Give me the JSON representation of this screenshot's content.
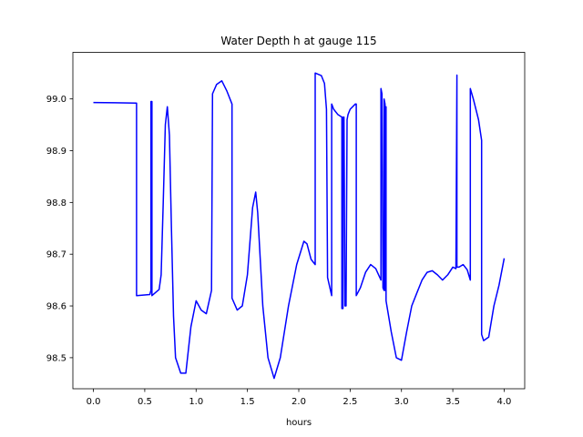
{
  "chart_data": {
    "type": "line",
    "title": "Water Depth h at gauge 115",
    "xlabel": "hours",
    "ylabel": "",
    "xlim": [
      -0.2,
      4.2
    ],
    "ylim": [
      98.44,
      99.09
    ],
    "xticks": [
      0.0,
      0.5,
      1.0,
      1.5,
      2.0,
      2.5,
      3.0,
      3.5,
      4.0
    ],
    "xtick_labels": [
      "0.0",
      "0.5",
      "1.0",
      "1.5",
      "2.0",
      "2.5",
      "3.0",
      "3.5",
      "4.0"
    ],
    "yticks": [
      98.5,
      98.6,
      98.7,
      98.8,
      98.9,
      99.0
    ],
    "ytick_labels": [
      "98.5",
      "98.6",
      "98.7",
      "98.8",
      "98.9",
      "99.0"
    ],
    "grid": false,
    "series": [
      {
        "color": "#0000ff",
        "x": [
          0.0,
          0.42,
          0.42,
          0.55,
          0.56,
          0.56,
          0.57,
          0.57,
          0.64,
          0.66,
          0.68,
          0.7,
          0.72,
          0.74,
          0.76,
          0.78,
          0.8,
          0.85,
          0.9,
          0.95,
          1.0,
          1.05,
          1.1,
          1.15,
          1.16,
          1.2,
          1.25,
          1.3,
          1.35,
          1.35,
          1.4,
          1.45,
          1.5,
          1.55,
          1.58,
          1.6,
          1.65,
          1.7,
          1.76,
          1.82,
          1.9,
          1.98,
          2.05,
          2.08,
          2.12,
          2.16,
          2.16,
          2.22,
          2.25,
          2.27,
          2.28,
          2.32,
          2.32,
          2.34,
          2.38,
          2.42,
          2.42,
          2.43,
          2.43,
          2.44,
          2.45,
          2.46,
          2.47,
          2.48,
          2.5,
          2.55,
          2.56,
          2.56,
          2.6,
          2.65,
          2.7,
          2.75,
          2.8,
          2.8,
          2.81,
          2.82,
          2.83,
          2.83,
          2.84,
          2.84,
          2.85,
          2.85,
          2.9,
          2.95,
          3.0,
          3.05,
          3.1,
          3.15,
          3.2,
          3.25,
          3.3,
          3.35,
          3.4,
          3.45,
          3.5,
          3.53,
          3.54,
          3.54,
          3.56,
          3.6,
          3.64,
          3.67,
          3.67,
          3.7,
          3.75,
          3.78,
          3.78,
          3.8,
          3.85,
          3.9,
          3.95,
          4.0
        ],
        "y": [
          98.993,
          98.992,
          98.62,
          98.622,
          98.63,
          98.995,
          98.995,
          98.62,
          98.632,
          98.66,
          98.8,
          98.95,
          98.985,
          98.93,
          98.75,
          98.58,
          98.5,
          98.47,
          98.47,
          98.56,
          98.61,
          98.592,
          98.585,
          98.63,
          99.01,
          99.028,
          99.035,
          99.015,
          98.99,
          98.615,
          98.592,
          98.6,
          98.66,
          98.79,
          98.82,
          98.78,
          98.6,
          98.5,
          98.46,
          98.5,
          98.6,
          98.68,
          98.725,
          98.72,
          98.69,
          98.68,
          99.05,
          99.045,
          99.03,
          98.98,
          98.655,
          98.62,
          98.99,
          98.98,
          98.97,
          98.965,
          98.595,
          98.595,
          98.965,
          98.965,
          98.6,
          98.6,
          98.96,
          98.97,
          98.98,
          98.99,
          98.99,
          98.62,
          98.635,
          98.665,
          98.68,
          98.672,
          98.65,
          99.02,
          99.01,
          98.635,
          98.63,
          99.0,
          98.99,
          98.63,
          98.985,
          98.61,
          98.55,
          98.5,
          98.495,
          98.55,
          98.6,
          98.625,
          98.65,
          98.665,
          98.668,
          98.66,
          98.65,
          98.66,
          98.675,
          98.672,
          99.046,
          98.675,
          98.675,
          98.68,
          98.67,
          98.65,
          99.02,
          99.0,
          98.96,
          98.92,
          98.545,
          98.533,
          98.54,
          98.6,
          98.64,
          98.692
        ]
      }
    ]
  }
}
